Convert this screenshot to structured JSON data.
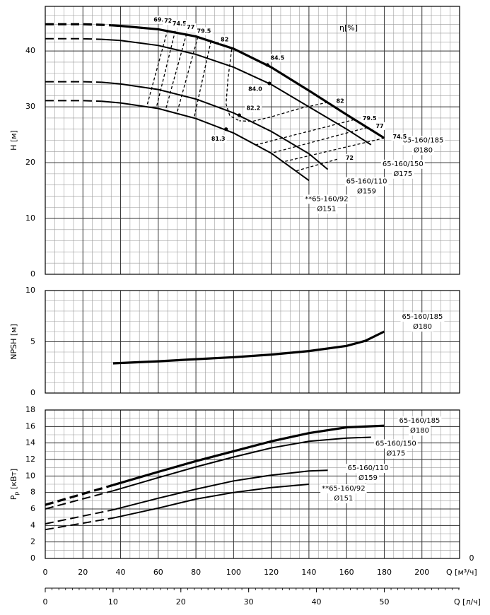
{
  "chart_data": [
    {
      "type": "line",
      "y_label": "H [м]",
      "xlim": [
        0,
        220
      ],
      "xticks": [
        0,
        20,
        40,
        60,
        80,
        100,
        120,
        140,
        160,
        180,
        200,
        220
      ],
      "ylim": [
        0,
        48
      ],
      "yticks": [
        0,
        10,
        20,
        30,
        40
      ],
      "grid": true,
      "series": [
        {
          "name": "65-160/185",
          "diameter": "Ø180",
          "color": "#000000",
          "weight": "bold",
          "dashed_x": [
            0,
            10,
            20,
            30,
            35
          ],
          "dashed_values": [
            44.8,
            44.8,
            44.8,
            44.7,
            44.6
          ],
          "x": [
            35,
            40,
            60,
            80,
            100,
            120,
            140,
            160,
            180
          ],
          "values": [
            44.6,
            44.5,
            43.9,
            42.6,
            40.4,
            37.1,
            32.9,
            28.6,
            24.4
          ]
        },
        {
          "name": "65-160/150",
          "diameter": "Ø175",
          "color": "#000000",
          "weight": "normal",
          "dashed_x": [
            0,
            10,
            20,
            30
          ],
          "dashed_values": [
            42.2,
            42.2,
            42.2,
            42.1
          ],
          "x": [
            30,
            40,
            60,
            80,
            100,
            120,
            140,
            160,
            173
          ],
          "values": [
            42.1,
            41.9,
            41.0,
            39.4,
            37.1,
            34.0,
            30.0,
            26.0,
            23.2
          ]
        },
        {
          "name": "65-160/110",
          "diameter": "Ø159",
          "color": "#000000",
          "weight": "normal",
          "dashed_x": [
            0,
            10,
            20,
            30
          ],
          "dashed_values": [
            34.5,
            34.5,
            34.5,
            34.4
          ],
          "x": [
            30,
            40,
            60,
            80,
            100,
            120,
            140,
            150
          ],
          "values": [
            34.4,
            34.1,
            33.1,
            31.4,
            28.9,
            25.6,
            21.6,
            18.8
          ]
        },
        {
          "name": "**65-160/92",
          "diameter": "Ø151",
          "color": "#000000",
          "weight": "normal",
          "dashed_x": [
            0,
            10,
            20,
            30
          ],
          "dashed_values": [
            31.1,
            31.1,
            31.1,
            31.0
          ],
          "x": [
            30,
            40,
            60,
            80,
            100,
            120,
            140
          ],
          "values": [
            31.0,
            30.7,
            29.7,
            27.9,
            25.3,
            21.7,
            16.8
          ]
        }
      ],
      "efficiency_title": "η[%]",
      "efficiency_lines": [
        {
          "label": "69.5",
          "x": [
            65,
            54
          ],
          "values": [
            43.8,
            30.2
          ]
        },
        {
          "label": "72",
          "x": [
            69,
            59
          ],
          "values": [
            43.6,
            29.9
          ]
        },
        {
          "label": "74.5",
          "x": [
            75,
            64
          ],
          "values": [
            43.1,
            29.6
          ]
        },
        {
          "label": "77",
          "x": [
            81,
            70
          ],
          "values": [
            42.5,
            29.0
          ]
        },
        {
          "label": "79.5",
          "x": [
            88,
            79
          ],
          "values": [
            41.8,
            28.0
          ]
        },
        {
          "label": "82",
          "x": [
            99,
            97,
            96,
            98,
            103
          ],
          "values": [
            40.3,
            35.0,
            30.5,
            28.4,
            27.5
          ]
        },
        {
          "label": "82",
          "x": [
            150,
            135,
            120,
            110,
            103
          ],
          "values": [
            30.8,
            29.7,
            28.2,
            27.4,
            27.5
          ]
        },
        {
          "label": "79.5",
          "x": [
            164,
            112
          ],
          "values": [
            27.7,
            23.2
          ]
        },
        {
          "label": "77",
          "x": [
            171,
            120
          ],
          "values": [
            26.3,
            21.7
          ]
        },
        {
          "label": "74.5",
          "x": [
            180,
            127
          ],
          "values": [
            24.4,
            20.2
          ]
        },
        {
          "label": "72",
          "x": [
            155,
            133
          ],
          "values": [
            20.6,
            18.5
          ]
        }
      ],
      "best_points": {
        "x": [
          118,
          119,
          103,
          96
        ],
        "values": [
          37.5,
          34.2,
          28.5,
          26.0
        ],
        "labels": [
          "84.5",
          "84.0",
          "82.2",
          "81.3"
        ]
      }
    },
    {
      "type": "line",
      "y_label": "NPSH [м]",
      "xlim": [
        0,
        220
      ],
      "xticks": [
        0,
        20,
        40,
        60,
        80,
        100,
        120,
        140,
        160,
        180,
        200,
        220
      ],
      "ylim": [
        0,
        10
      ],
      "yticks": [
        0,
        5,
        10
      ],
      "grid": true,
      "series": [
        {
          "name": "65-160/185",
          "diameter": "Ø180",
          "color": "#000000",
          "weight": "bold",
          "x": [
            36,
            60,
            80,
            100,
            120,
            140,
            160,
            170,
            180
          ],
          "values": [
            2.9,
            3.1,
            3.3,
            3.5,
            3.75,
            4.1,
            4.6,
            5.1,
            6.0
          ]
        }
      ]
    },
    {
      "type": "line",
      "y_label": "P",
      "y_label_sub": "p",
      "y_label_unit": " [кВт]",
      "x_label": "Q [м³/ч]",
      "corner_label": "0",
      "xlim": [
        0,
        220
      ],
      "xticks": [
        0,
        20,
        40,
        60,
        80,
        100,
        120,
        140,
        160,
        180,
        200,
        220
      ],
      "x_tick_labels_until": 200,
      "ylim": [
        0,
        18
      ],
      "yticks": [
        0,
        2,
        4,
        6,
        8,
        10,
        12,
        14,
        16,
        18
      ],
      "grid": true,
      "x2_label": "Q [л/ч]",
      "x2lim": [
        0,
        61.11
      ],
      "x2ticks": [
        0,
        10,
        20,
        30,
        40,
        50
      ],
      "series": [
        {
          "name": "65-160/185",
          "diameter": "Ø180",
          "color": "#000000",
          "weight": "bold",
          "dashed_x": [
            0,
            36
          ],
          "dashed_values": [
            6.5,
            8.9
          ],
          "x": [
            36,
            60,
            80,
            100,
            120,
            140,
            160,
            180
          ],
          "values": [
            8.9,
            10.5,
            11.8,
            13.0,
            14.2,
            15.2,
            15.9,
            16.1
          ]
        },
        {
          "name": "65-160/150",
          "diameter": "Ø175",
          "color": "#000000",
          "weight": "normal",
          "dashed_x": [
            0,
            36
          ],
          "dashed_values": [
            6.0,
            8.2
          ],
          "x": [
            36,
            60,
            80,
            100,
            120,
            140,
            160,
            173
          ],
          "values": [
            8.2,
            9.8,
            11.1,
            12.3,
            13.4,
            14.2,
            14.6,
            14.7
          ]
        },
        {
          "name": "65-160/110",
          "diameter": "Ø159",
          "color": "#000000",
          "weight": "normal",
          "dashed_x": [
            0,
            36
          ],
          "dashed_values": [
            4.2,
            5.9
          ],
          "x": [
            36,
            60,
            80,
            100,
            120,
            140,
            150
          ],
          "values": [
            5.9,
            7.3,
            8.4,
            9.4,
            10.1,
            10.6,
            10.7
          ]
        },
        {
          "name": "**65-160/92",
          "diameter": "Ø151",
          "color": "#000000",
          "weight": "normal",
          "dashed_x": [
            0,
            36
          ],
          "dashed_values": [
            3.5,
            4.9
          ],
          "x": [
            36,
            60,
            80,
            100,
            120,
            140
          ],
          "values": [
            4.9,
            6.1,
            7.2,
            8.0,
            8.6,
            9.0
          ]
        }
      ]
    }
  ]
}
